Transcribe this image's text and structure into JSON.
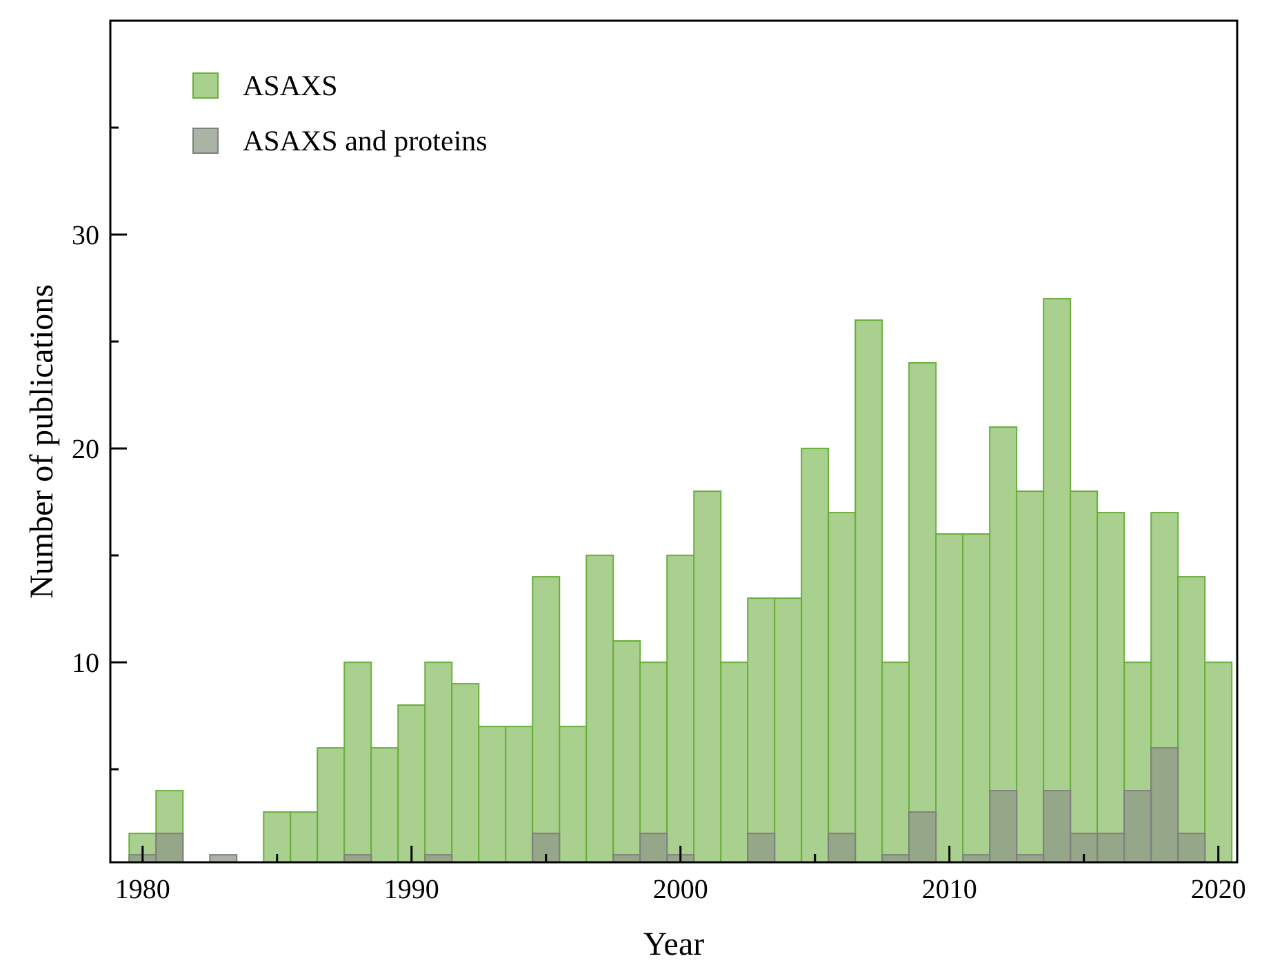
{
  "chart_data": {
    "type": "bar",
    "xlabel": "Year",
    "ylabel": "Number of publications",
    "x": [
      1980,
      1981,
      1983,
      1985,
      1986,
      1987,
      1988,
      1989,
      1990,
      1991,
      1992,
      1993,
      1994,
      1995,
      1996,
      1997,
      1998,
      1999,
      2000,
      2001,
      2002,
      2003,
      2004,
      2005,
      2006,
      2007,
      2008,
      2009,
      2010,
      2011,
      2012,
      2013,
      2014,
      2015,
      2016,
      2017,
      2018,
      2019,
      2020
    ],
    "series": [
      {
        "name": "ASAXS",
        "color": "#a9d08e",
        "values": [
          2,
          4,
          null,
          3,
          3,
          6,
          10,
          6,
          8,
          10,
          9,
          7,
          7,
          14,
          7,
          15,
          11,
          10,
          15,
          18,
          10,
          13,
          13,
          20,
          17,
          26,
          10,
          24,
          16,
          16,
          21,
          18,
          27,
          18,
          17,
          10,
          17,
          14,
          10
        ]
      },
      {
        "name": "ASAXS and proteins",
        "color": "#8f9a86",
        "values": [
          1,
          2,
          1,
          null,
          null,
          null,
          1,
          null,
          null,
          1,
          null,
          null,
          null,
          2,
          null,
          null,
          1,
          2,
          1,
          null,
          null,
          2,
          null,
          null,
          2,
          null,
          1,
          3,
          null,
          1,
          4,
          1,
          4,
          2,
          2,
          4,
          6,
          2,
          null
        ]
      }
    ],
    "xlim": [
      1978.8,
      2020.7
    ],
    "xticks": [
      1980,
      {
        "value": 1985,
        "label": null
      },
      1990,
      {
        "value": 1995,
        "label": null
      },
      2000,
      {
        "value": 2005,
        "label": null
      },
      2010,
      {
        "value": 2015,
        "label": null
      },
      2020
    ],
    "ylim": [
      0.65,
      40
    ],
    "yticks": [
      {
        "value": 5,
        "label": null
      },
      10,
      {
        "value": 15,
        "label": null
      },
      20,
      {
        "value": 25,
        "label": null
      },
      30,
      {
        "value": 35,
        "label": null
      }
    ],
    "grid": false,
    "legend": "top left"
  }
}
